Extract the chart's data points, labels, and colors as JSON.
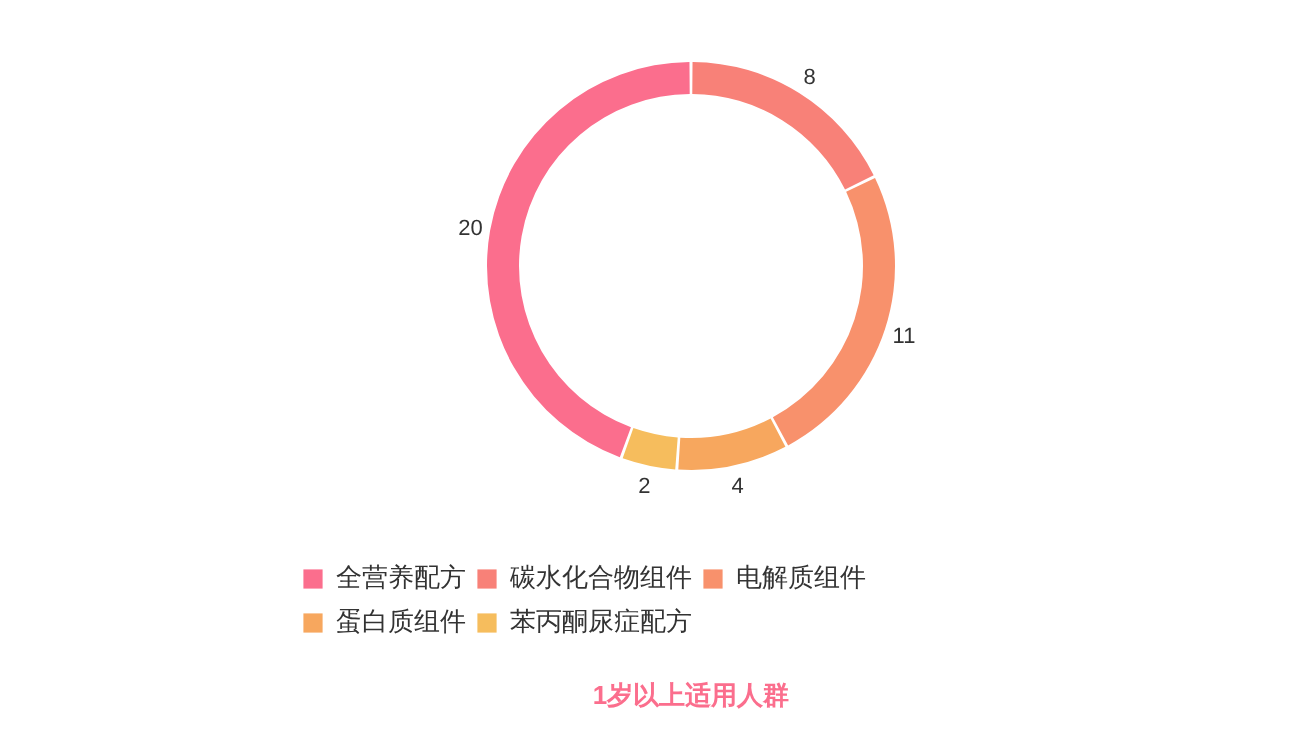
{
  "chart_data": {
    "type": "donut",
    "title": "1岁以上适用人群",
    "categories": [
      "全营养配方",
      "碳水化合物组件",
      "电解质组件",
      "蛋白质组件",
      "苯丙酮尿症配方"
    ],
    "values": [
      20,
      8,
      11,
      4,
      2
    ],
    "colors": [
      "#fb6e8d",
      "#f88178",
      "#f8916c",
      "#f7a75e",
      "#f6bd5d"
    ],
    "data_labels": true,
    "legend": "bottom"
  }
}
